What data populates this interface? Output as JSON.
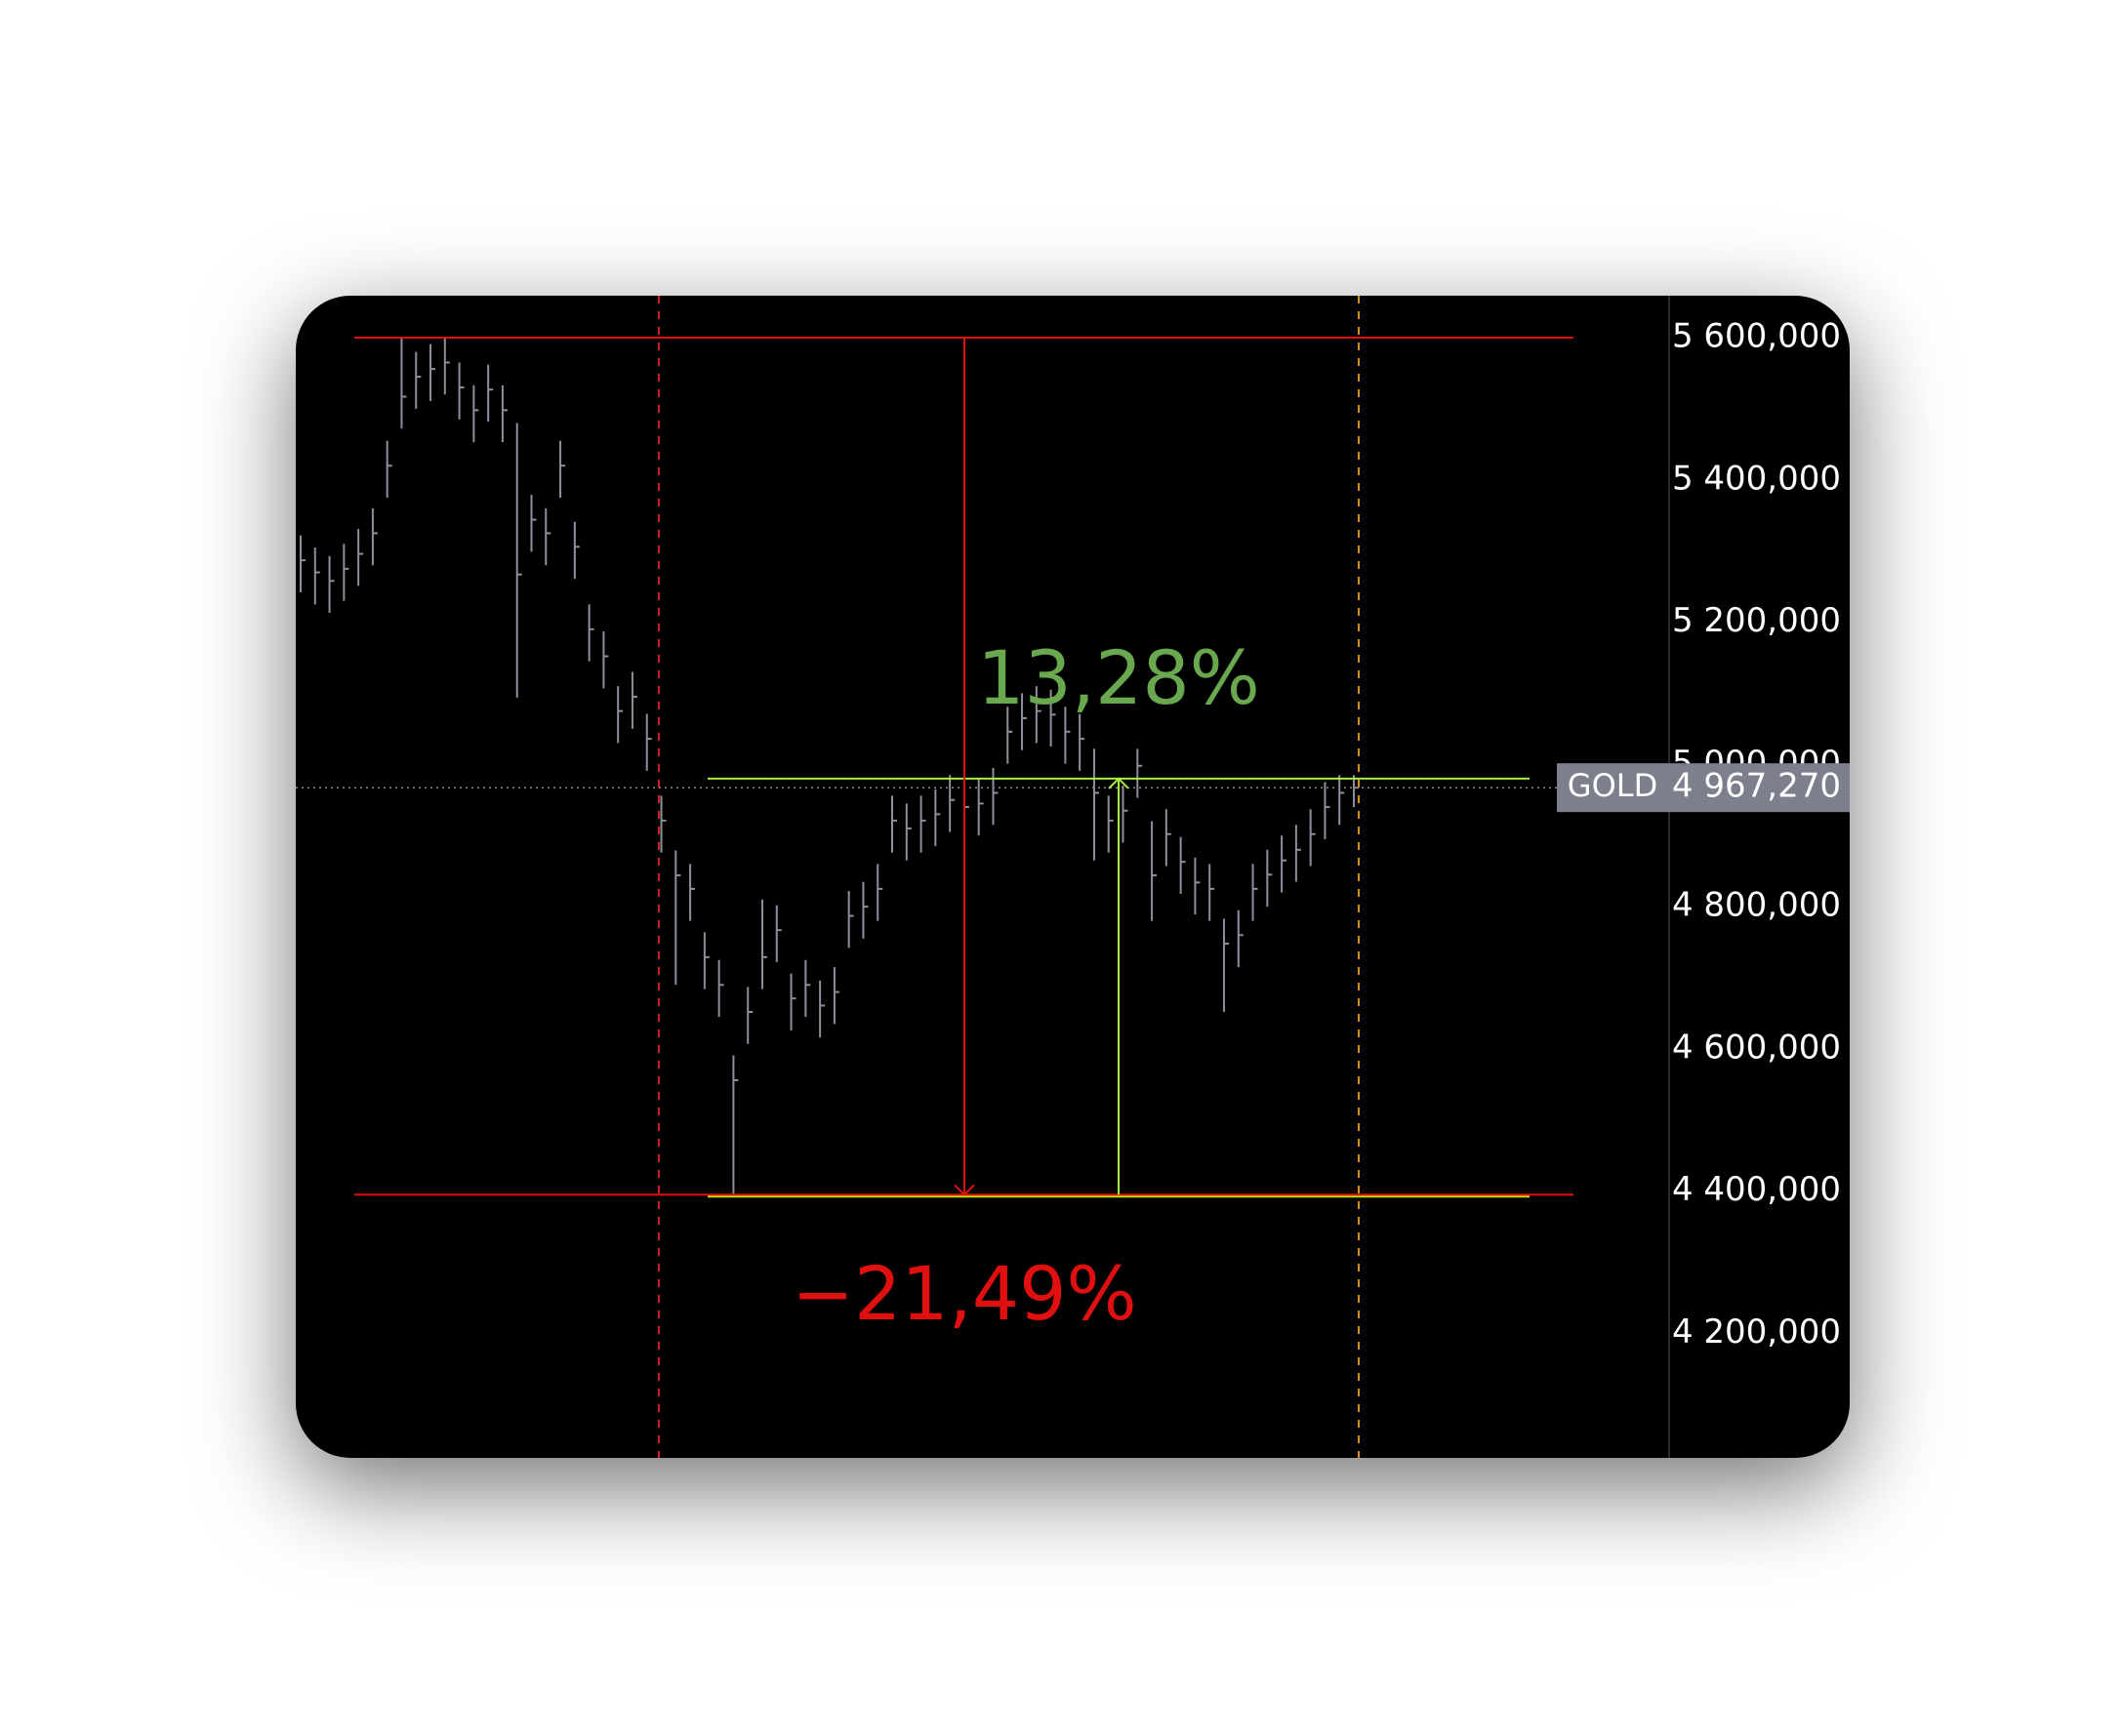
{
  "chart_data": {
    "type": "hlc",
    "symbol": "GOLD",
    "price_tag": {
      "value": 4967270,
      "label": "4 967,270"
    },
    "annotations": [
      {
        "text": "13,28%",
        "color": "#6aa84f"
      },
      {
        "text": "−21,49%",
        "color": "#e01010"
      }
    ],
    "levels": {
      "high": 5600000,
      "low": 4395000,
      "target": 4980000
    },
    "ylim": [
      4025000,
      5659000
    ],
    "yticks": [
      {
        "value": 5600000,
        "label": "5 600,000"
      },
      {
        "value": 5400000,
        "label": "5 400,000"
      },
      {
        "value": 5200000,
        "label": "5 200,000"
      },
      {
        "value": 5000000,
        "label": "5 000,000"
      },
      {
        "value": 4800000,
        "label": "4 800,000"
      },
      {
        "value": 4600000,
        "label": "4 600,000"
      },
      {
        "value": 4400000,
        "label": "4 400,000"
      },
      {
        "value": 4200000,
        "label": "4 200,000"
      }
    ],
    "color": "#8c8f9c",
    "high": [
      5322000,
      5305000,
      5293000,
      5310000,
      5331000,
      5360000,
      5455000,
      5600000,
      5580000,
      5591000,
      5600000,
      5565000,
      5533000,
      5562000,
      5533000,
      5480000,
      5379000,
      5360000,
      5455000,
      5341000,
      5225000,
      5187000,
      5110000,
      5130000,
      5071000,
      4956000,
      4879000,
      4860000,
      4764000,
      4725000,
      4591000,
      4687000,
      4810000,
      4802000,
      4706000,
      4725000,
      4696000,
      4715000,
      4822000,
      4835000,
      4860000,
      4956000,
      4945000,
      4956000,
      4965000,
      4985000,
      4975000,
      4980000,
      4995000,
      5081000,
      5100000,
      5110000,
      5105000,
      5081000,
      5071000,
      5022000,
      4956000,
      4970000,
      5022000,
      4920000,
      4937000,
      4898000,
      4869000,
      4860000,
      4783000,
      4795000,
      4860000,
      4880000,
      4900000,
      4915000,
      4937000,
      4975000,
      4985000,
      4985000
    ],
    "low": [
      5242000,
      5225000,
      5213000,
      5230000,
      5251000,
      5280000,
      5375000,
      5472000,
      5500000,
      5511000,
      5520000,
      5485000,
      5453000,
      5482000,
      5453000,
      5094000,
      5299000,
      5280000,
      5375000,
      5261000,
      5145000,
      5107000,
      5030000,
      5050000,
      4991000,
      4876000,
      4690000,
      4780000,
      4684000,
      4645000,
      4395000,
      4607000,
      4684000,
      4722000,
      4626000,
      4645000,
      4616000,
      4635000,
      4742000,
      4755000,
      4780000,
      4876000,
      4865000,
      4876000,
      4885000,
      4905000,
      4895000,
      4900000,
      4915000,
      5001000,
      5020000,
      5030000,
      5025000,
      5001000,
      4991000,
      4865000,
      4876000,
      4890000,
      4953000,
      4780000,
      4857000,
      4818000,
      4789000,
      4780000,
      4652000,
      4715000,
      4780000,
      4800000,
      4820000,
      4835000,
      4857000,
      4895000,
      4915000,
      4940000
    ],
    "close": [
      5287000,
      5270000,
      5258000,
      5275000,
      5296000,
      5325000,
      5420000,
      5517000,
      5545000,
      5556000,
      5565000,
      5530000,
      5498000,
      5527000,
      5498000,
      5267000,
      5344000,
      5325000,
      5420000,
      5306000,
      5190000,
      5152000,
      5075000,
      5095000,
      5036000,
      4921000,
      4844000,
      4825000,
      4729000,
      4690000,
      4556000,
      4652000,
      4729000,
      4767000,
      4671000,
      4690000,
      4661000,
      4680000,
      4787000,
      4800000,
      4825000,
      4921000,
      4910000,
      4921000,
      4930000,
      4950000,
      4940000,
      4945000,
      4960000,
      5046000,
      5065000,
      5075000,
      5070000,
      5046000,
      5036000,
      4960000,
      4921000,
      4935000,
      4998000,
      4844000,
      4902000,
      4863000,
      4834000,
      4825000,
      4748000,
      4760000,
      4825000,
      4845000,
      4865000,
      4880000,
      4902000,
      4940000,
      4960000,
      4967270
    ]
  }
}
